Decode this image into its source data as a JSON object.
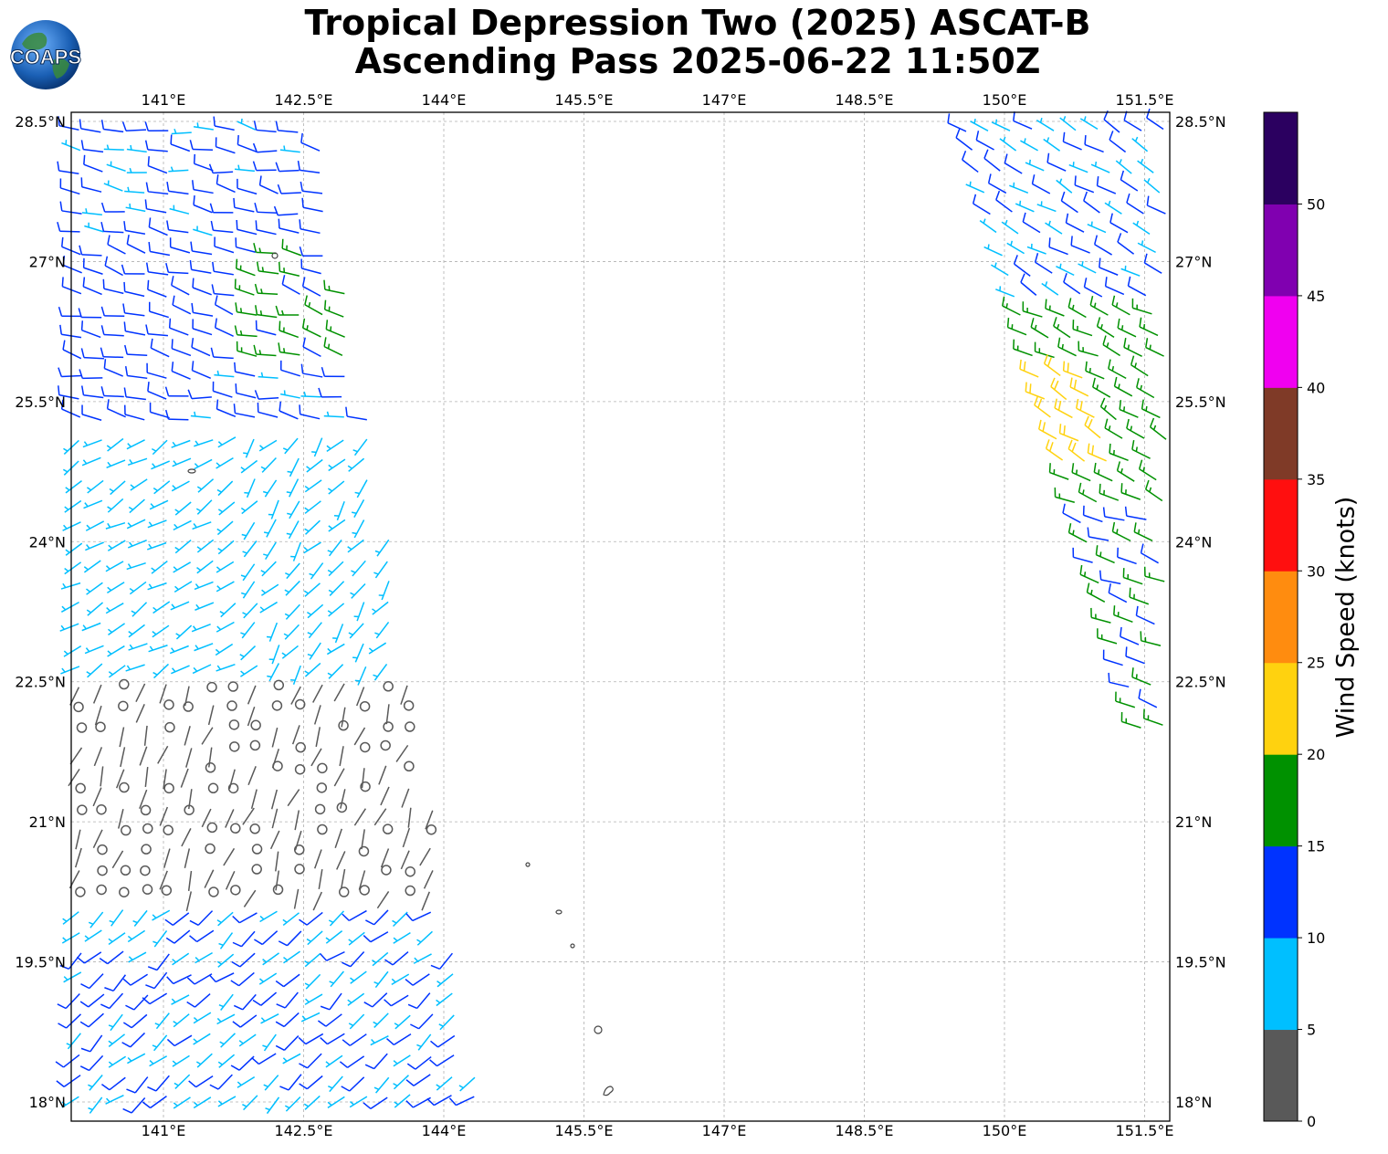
{
  "title": {
    "line1": "Tropical Depression Two (2025) ASCAT-B",
    "line2": "Ascending Pass 2025-06-22 11:50Z"
  },
  "logo": {
    "text": "COAPS"
  },
  "map": {
    "lon_ticks": [
      "141°E",
      "142.5°E",
      "144°E",
      "145.5°E",
      "147°E",
      "148.5°E",
      "150°E",
      "151.5°E"
    ],
    "lat_ticks": [
      "28.5°N",
      "27°N",
      "25.5°N",
      "24°N",
      "22.5°N",
      "21°N",
      "19.5°N",
      "18°N"
    ],
    "lon_values": [
      141,
      142.5,
      144,
      145.5,
      147,
      148.5,
      150,
      151.5
    ],
    "lat_values": [
      28.5,
      27,
      25.5,
      24,
      22.5,
      21,
      19.5,
      18
    ],
    "extent": {
      "lon": [
        140.0,
        151.75
      ],
      "lat": [
        17.8,
        28.6
      ]
    },
    "grid": true
  },
  "colorbar": {
    "label": "Wind Speed (knots)",
    "ticks": [
      "0",
      "5",
      "10",
      "15",
      "20",
      "25",
      "30",
      "35",
      "40",
      "45",
      "50"
    ],
    "bins": [
      {
        "range": [
          0,
          5
        ],
        "color": "#595959"
      },
      {
        "range": [
          5,
          10
        ],
        "color": "#00bfff"
      },
      {
        "range": [
          10,
          15
        ],
        "color": "#0033ff"
      },
      {
        "range": [
          15,
          20
        ],
        "color": "#009100"
      },
      {
        "range": [
          20,
          25
        ],
        "color": "#ffd20f"
      },
      {
        "range": [
          25,
          30
        ],
        "color": "#ff8c0f"
      },
      {
        "range": [
          30,
          35
        ],
        "color": "#ff0f0f"
      },
      {
        "range": [
          35,
          40
        ],
        "color": "#7f3a27"
      },
      {
        "range": [
          40,
          45
        ],
        "color": "#f000f0"
      },
      {
        "range": [
          45,
          50
        ],
        "color": "#8000b0"
      },
      {
        "range": [
          50,
          55
        ],
        "color": "#2b0060"
      }
    ]
  },
  "wind_regions": [
    {
      "name": "west-swath-north",
      "lat": [
        25.3,
        28.5
      ],
      "speed_kt": 11,
      "dir_deg": 280
    },
    {
      "name": "west-swath-northeast-band",
      "lat": [
        25.8,
        27.2
      ],
      "speed_kt": 16,
      "dir_deg": 285
    },
    {
      "name": "west-swath-middle",
      "lat": [
        22.6,
        25.2
      ],
      "speed_kt": 8,
      "dir_deg": 240
    },
    {
      "name": "west-swath-calm",
      "lat": [
        20.2,
        22.6
      ],
      "speed_kt": 3,
      "dir_deg": 200
    },
    {
      "name": "west-swath-south",
      "lat": [
        17.9,
        20.2
      ],
      "speed_kt": 10,
      "dir_deg": 230
    },
    {
      "name": "east-swath-north",
      "lat": [
        26.6,
        28.5
      ],
      "speed_kt": 10,
      "dir_deg": 300
    },
    {
      "name": "east-swath-middle",
      "lat": [
        24.4,
        26.6
      ],
      "speed_kt": 18,
      "dir_deg": 295
    },
    {
      "name": "east-swath-core",
      "lat": [
        24.8,
        25.8
      ],
      "speed_kt": 22,
      "dir_deg": 300
    },
    {
      "name": "east-swath-south",
      "lat": [
        22.0,
        24.4
      ],
      "speed_kt": 15,
      "dir_deg": 290
    }
  ]
}
